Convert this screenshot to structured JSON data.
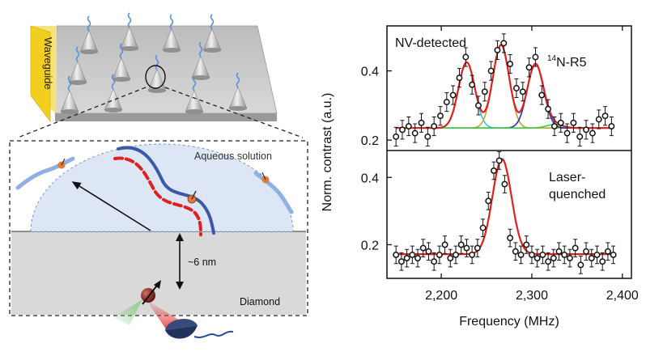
{
  "figure": {
    "waveguide_label": "Waveguide",
    "solution_label": "Aqueous solution",
    "depth_label": "~6 nm",
    "substrate_label": "Diamond",
    "colors": {
      "waveguide": "#f2cf1f",
      "chip": "#c8c8c8",
      "dome": "#dde6f4",
      "diamond": "#d9d9d9",
      "strand_blue": "#3a5aa8",
      "strand_red": "#e02020",
      "laser": "#e23b3b",
      "fluorescence": "#7fc97f"
    }
  },
  "chart_data": [
    {
      "type": "scatter",
      "panel": "top",
      "annotation": "NV-detected",
      "peak_label_sup": "14",
      "peak_label": "N-R5",
      "xlim": [
        2140,
        2410
      ],
      "ylim": [
        0.17,
        0.53
      ],
      "yticks": [
        0.2,
        0.4
      ],
      "ytick_labels": [
        "0.2",
        "0.4"
      ],
      "points": {
        "x": [
          2150,
          2157,
          2164,
          2171,
          2178,
          2185,
          2192,
          2199,
          2206,
          2213,
          2220,
          2227,
          2234,
          2241,
          2248,
          2255,
          2262,
          2269,
          2276,
          2283,
          2290,
          2297,
          2304,
          2311,
          2318,
          2325,
          2332,
          2339,
          2346,
          2353,
          2360,
          2367,
          2374,
          2381,
          2388
        ],
        "y": [
          0.21,
          0.23,
          0.24,
          0.22,
          0.25,
          0.21,
          0.24,
          0.27,
          0.31,
          0.33,
          0.38,
          0.44,
          0.36,
          0.3,
          0.34,
          0.4,
          0.46,
          0.48,
          0.42,
          0.35,
          0.34,
          0.41,
          0.44,
          0.33,
          0.29,
          0.24,
          0.25,
          0.22,
          0.25,
          0.21,
          0.23,
          0.22,
          0.26,
          0.27,
          0.24
        ]
      },
      "yerr": 0.027,
      "fit": {
        "baseline": 0.235,
        "peaks": [
          {
            "center": 2228,
            "amp": 0.19,
            "sigma": 9,
            "color": "#35c8e0"
          },
          {
            "center": 2266,
            "amp": 0.24,
            "sigma": 9,
            "color": "#c9a23a"
          },
          {
            "center": 2304,
            "amp": 0.185,
            "sigma": 9,
            "color": "#2330c0"
          },
          {
            "center": 2325,
            "amp": 0.01,
            "sigma": 9,
            "color": "#3fd040"
          }
        ]
      }
    },
    {
      "type": "scatter",
      "panel": "bottom",
      "annotation": "Laser-\nquenched",
      "xlim": [
        2140,
        2410
      ],
      "ylim": [
        0.1,
        0.48
      ],
      "yticks": [
        0.2,
        0.4
      ],
      "ytick_labels": [
        "0.2",
        "0.4"
      ],
      "xticks": [
        2200,
        2300,
        2400
      ],
      "xtick_labels": [
        "2,200",
        "2,300",
        "2,400"
      ],
      "xlabel": "Frequency (MHz)",
      "points": {
        "x": [
          2150,
          2156,
          2162,
          2168,
          2174,
          2180,
          2186,
          2192,
          2198,
          2204,
          2210,
          2216,
          2222,
          2228,
          2234,
          2240,
          2246,
          2252,
          2258,
          2264,
          2270,
          2276,
          2282,
          2288,
          2294,
          2300,
          2306,
          2312,
          2318,
          2324,
          2330,
          2336,
          2342,
          2348,
          2354,
          2360,
          2366,
          2372,
          2378,
          2384,
          2390
        ],
        "y": [
          0.17,
          0.15,
          0.16,
          0.17,
          0.16,
          0.19,
          0.18,
          0.15,
          0.17,
          0.2,
          0.16,
          0.17,
          0.2,
          0.19,
          0.17,
          0.19,
          0.25,
          0.33,
          0.42,
          0.45,
          0.38,
          0.22,
          0.18,
          0.17,
          0.2,
          0.17,
          0.16,
          0.17,
          0.15,
          0.16,
          0.18,
          0.17,
          0.16,
          0.19,
          0.14,
          0.18,
          0.16,
          0.17,
          0.15,
          0.18,
          0.17
        ]
      },
      "yerr": 0.026,
      "fit": {
        "baseline": 0.172,
        "peaks": [
          {
            "center": 2267,
            "amp": 0.283,
            "sigma": 10.5,
            "color": "#e02020"
          }
        ]
      }
    }
  ],
  "shared_ylabel": "Norm. contrast (a.u.)"
}
